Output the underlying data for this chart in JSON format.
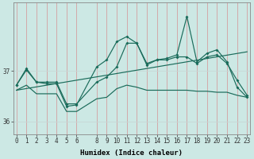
{
  "xlabel": "Humidex (Indice chaleur)",
  "bg_color": "#cce8e4",
  "line_color": "#1a6b5a",
  "grid_color": "#e8e8e8",
  "x": [
    0,
    1,
    2,
    3,
    4,
    5,
    6,
    8,
    9,
    10,
    11,
    12,
    13,
    14,
    15,
    16,
    17,
    18,
    19,
    20,
    21,
    22,
    23
  ],
  "line_main": [
    36.72,
    37.05,
    36.78,
    36.75,
    36.75,
    36.3,
    36.33,
    37.08,
    37.22,
    37.58,
    37.68,
    37.55,
    37.12,
    37.22,
    37.25,
    37.32,
    38.08,
    37.18,
    37.35,
    37.42,
    37.18,
    36.68,
    36.48
  ],
  "line_smooth": [
    36.72,
    37.02,
    36.78,
    36.78,
    36.78,
    36.35,
    36.35,
    36.78,
    36.88,
    37.08,
    37.55,
    37.55,
    37.15,
    37.22,
    37.22,
    37.28,
    37.28,
    37.15,
    37.28,
    37.32,
    37.15,
    36.82,
    36.52
  ],
  "line_flat": [
    36.62,
    36.72,
    36.55,
    36.55,
    36.55,
    36.2,
    36.2,
    36.45,
    36.48,
    36.65,
    36.72,
    36.68,
    36.62,
    36.62,
    36.62,
    36.62,
    36.62,
    36.6,
    36.6,
    36.58,
    36.58,
    36.52,
    36.48
  ],
  "trend_x": [
    0,
    23
  ],
  "trend_y": [
    36.62,
    37.38
  ],
  "ylim": [
    35.75,
    38.35
  ],
  "ytick_vals": [
    36,
    37
  ],
  "xticks": [
    0,
    1,
    2,
    3,
    4,
    5,
    6,
    8,
    9,
    10,
    11,
    12,
    13,
    14,
    15,
    16,
    17,
    18,
    19,
    20,
    21,
    22,
    23
  ],
  "tick_fontsize": 5.5,
  "xlabel_fontsize": 6.5
}
